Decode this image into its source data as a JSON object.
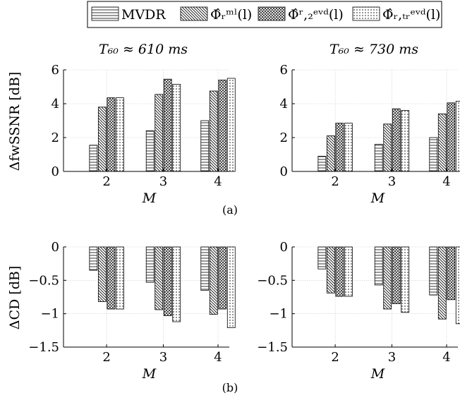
{
  "legend": {
    "entries": [
      {
        "label": "MVDR",
        "pattern": "hlines"
      },
      {
        "label": "Φ̂ᵣᵐˡ(l)",
        "pattern": "nlines"
      },
      {
        "label": "Φ̂ʳ,₂ᵉᵛᵈ(l)",
        "pattern": "cross"
      },
      {
        "label": "Φ̂ᵣ,ₜᵣᵉᵛᵈ(l)",
        "pattern": "dots"
      }
    ]
  },
  "columns": [
    {
      "title": "T₆₀ ≈ 610 ms"
    },
    {
      "title": "T₆₀ ≈ 730 ms"
    }
  ],
  "rows": [
    {
      "ylabel": "ΔfwSSNR [dB]",
      "caption": "(a)"
    },
    {
      "ylabel": "ΔCD [dB]",
      "caption": "(b)"
    }
  ],
  "chart_data": [
    {
      "type": "bar",
      "row": 0,
      "col": 0,
      "title": "T₆₀ ≈ 610 ms",
      "xlabel": "M",
      "ylabel": "ΔfwSSNR [dB]",
      "categories": [
        "2",
        "3",
        "4"
      ],
      "ylim": [
        0,
        6
      ],
      "yticks": [
        0,
        2,
        4,
        6
      ],
      "ytick_labels": [
        "0",
        "2",
        "4",
        "6"
      ],
      "grid": true,
      "series": [
        {
          "name": "MVDR",
          "values": [
            1.55,
            2.4,
            3.0
          ]
        },
        {
          "name": "Φ̂ᵣᵐˡ(l)",
          "values": [
            3.8,
            4.55,
            4.75
          ]
        },
        {
          "name": "Φ̂ʳ,₂ᵉᵛᵈ(l)",
          "values": [
            4.35,
            5.45,
            5.4
          ]
        },
        {
          "name": "Φ̂ᵣ,ₜᵣᵉᵛᵈ(l)",
          "values": [
            4.35,
            5.15,
            5.5
          ]
        }
      ]
    },
    {
      "type": "bar",
      "row": 0,
      "col": 1,
      "title": "T₆₀ ≈ 730 ms",
      "xlabel": "M",
      "ylabel": "",
      "categories": [
        "2",
        "3",
        "4"
      ],
      "ylim": [
        0,
        6
      ],
      "yticks": [
        0,
        2,
        4,
        6
      ],
      "ytick_labels": [
        "0",
        "2",
        "4",
        "6"
      ],
      "grid": true,
      "series": [
        {
          "name": "MVDR",
          "values": [
            0.9,
            1.6,
            2.0
          ]
        },
        {
          "name": "Φ̂ᵣᵐˡ(l)",
          "values": [
            2.1,
            2.8,
            3.4
          ]
        },
        {
          "name": "Φ̂ʳ,₂ᵉᵛᵈ(l)",
          "values": [
            2.85,
            3.7,
            4.05
          ]
        },
        {
          "name": "Φ̂ᵣ,ₜᵣᵉᵛᵈ(l)",
          "values": [
            2.85,
            3.6,
            4.15
          ]
        }
      ]
    },
    {
      "type": "bar",
      "row": 1,
      "col": 0,
      "title": "",
      "xlabel": "M",
      "ylabel": "ΔCD [dB]",
      "categories": [
        "2",
        "3",
        "4"
      ],
      "ylim": [
        -1.5,
        0
      ],
      "yticks": [
        0,
        -0.5,
        -1,
        -1.5
      ],
      "ytick_labels": [
        "0",
        "−0.5",
        "−1",
        "−1.5"
      ],
      "grid": true,
      "series": [
        {
          "name": "MVDR",
          "values": [
            -0.35,
            -0.53,
            -0.65
          ]
        },
        {
          "name": "Φ̂ᵣᵐˡ(l)",
          "values": [
            -0.82,
            -0.94,
            -1.01
          ]
        },
        {
          "name": "Φ̂ʳ,₂ᵉᵛᵈ(l)",
          "values": [
            -0.93,
            -1.03,
            -0.93
          ]
        },
        {
          "name": "Φ̂ᵣ,ₜᵣᵉᵛᵈ(l)",
          "values": [
            -0.93,
            -1.12,
            -1.21
          ]
        }
      ]
    },
    {
      "type": "bar",
      "row": 1,
      "col": 1,
      "title": "",
      "xlabel": "M",
      "ylabel": "",
      "categories": [
        "2",
        "3",
        "4"
      ],
      "ylim": [
        -1.5,
        0
      ],
      "yticks": [
        0,
        -0.5,
        -1,
        -1.5
      ],
      "ytick_labels": [
        "0",
        "−0.5",
        "−1",
        "−1.5"
      ],
      "grid": true,
      "series": [
        {
          "name": "MVDR",
          "values": [
            -0.33,
            -0.57,
            -0.72
          ]
        },
        {
          "name": "Φ̂ᵣᵐˡ(l)",
          "values": [
            -0.69,
            -0.93,
            -1.08
          ]
        },
        {
          "name": "Φ̂ʳ,₂ᵉᵛᵈ(l)",
          "values": [
            -0.74,
            -0.85,
            -0.79
          ]
        },
        {
          "name": "Φ̂ᵣ,ₜᵣᵉᵛᵈ(l)",
          "values": [
            -0.74,
            -0.98,
            -1.15
          ]
        }
      ]
    }
  ]
}
